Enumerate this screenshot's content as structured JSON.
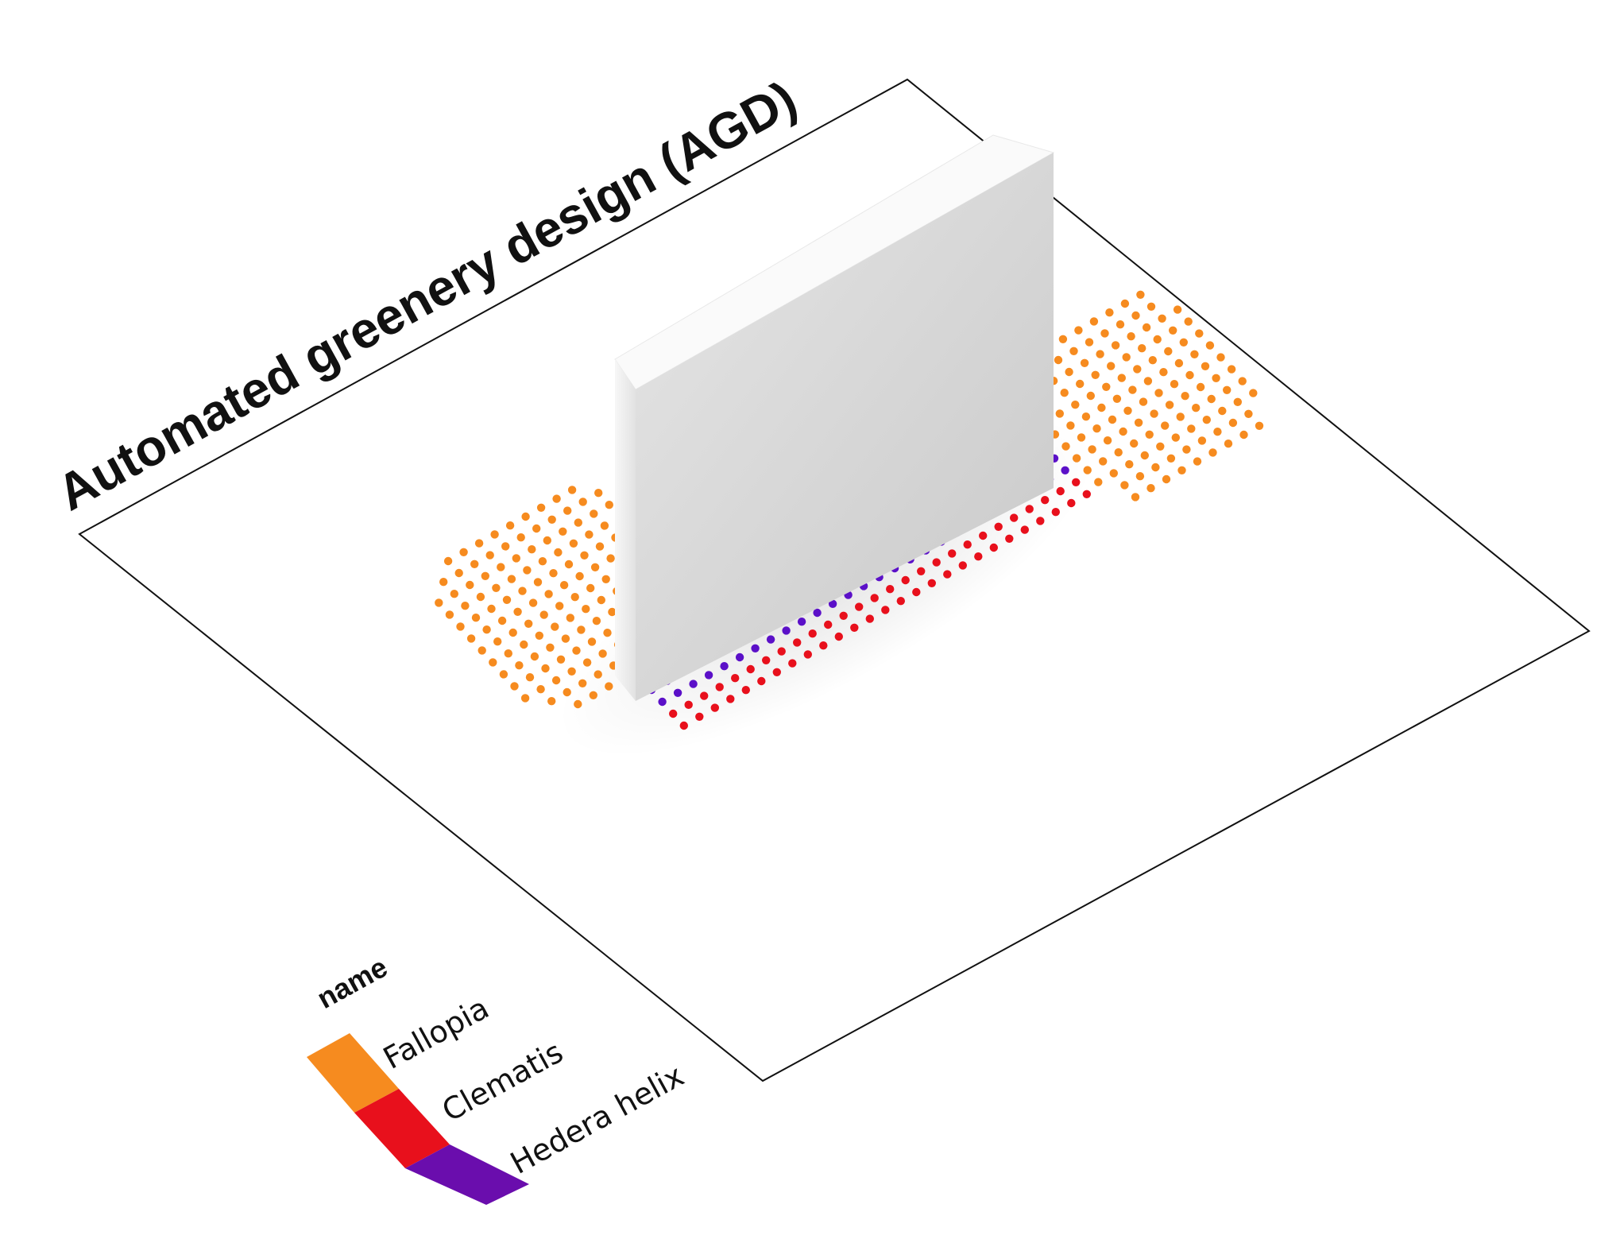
{
  "title": "Automated greenery design (AGD)",
  "legend": {
    "title": "name",
    "items": [
      {
        "label": "Fallopia",
        "color": "#F68B1F"
      },
      {
        "label": "Clematis",
        "color": "#E8101C"
      },
      {
        "label": "Hedera helix",
        "color": "#6A0DAD"
      }
    ]
  },
  "colors": {
    "plane_border": "#111111",
    "wall_front": "#d6d6d6",
    "wall_side": "#f4f4f4",
    "wall_top": "#fafafa",
    "hedera_dot": "#5B10C8"
  }
}
